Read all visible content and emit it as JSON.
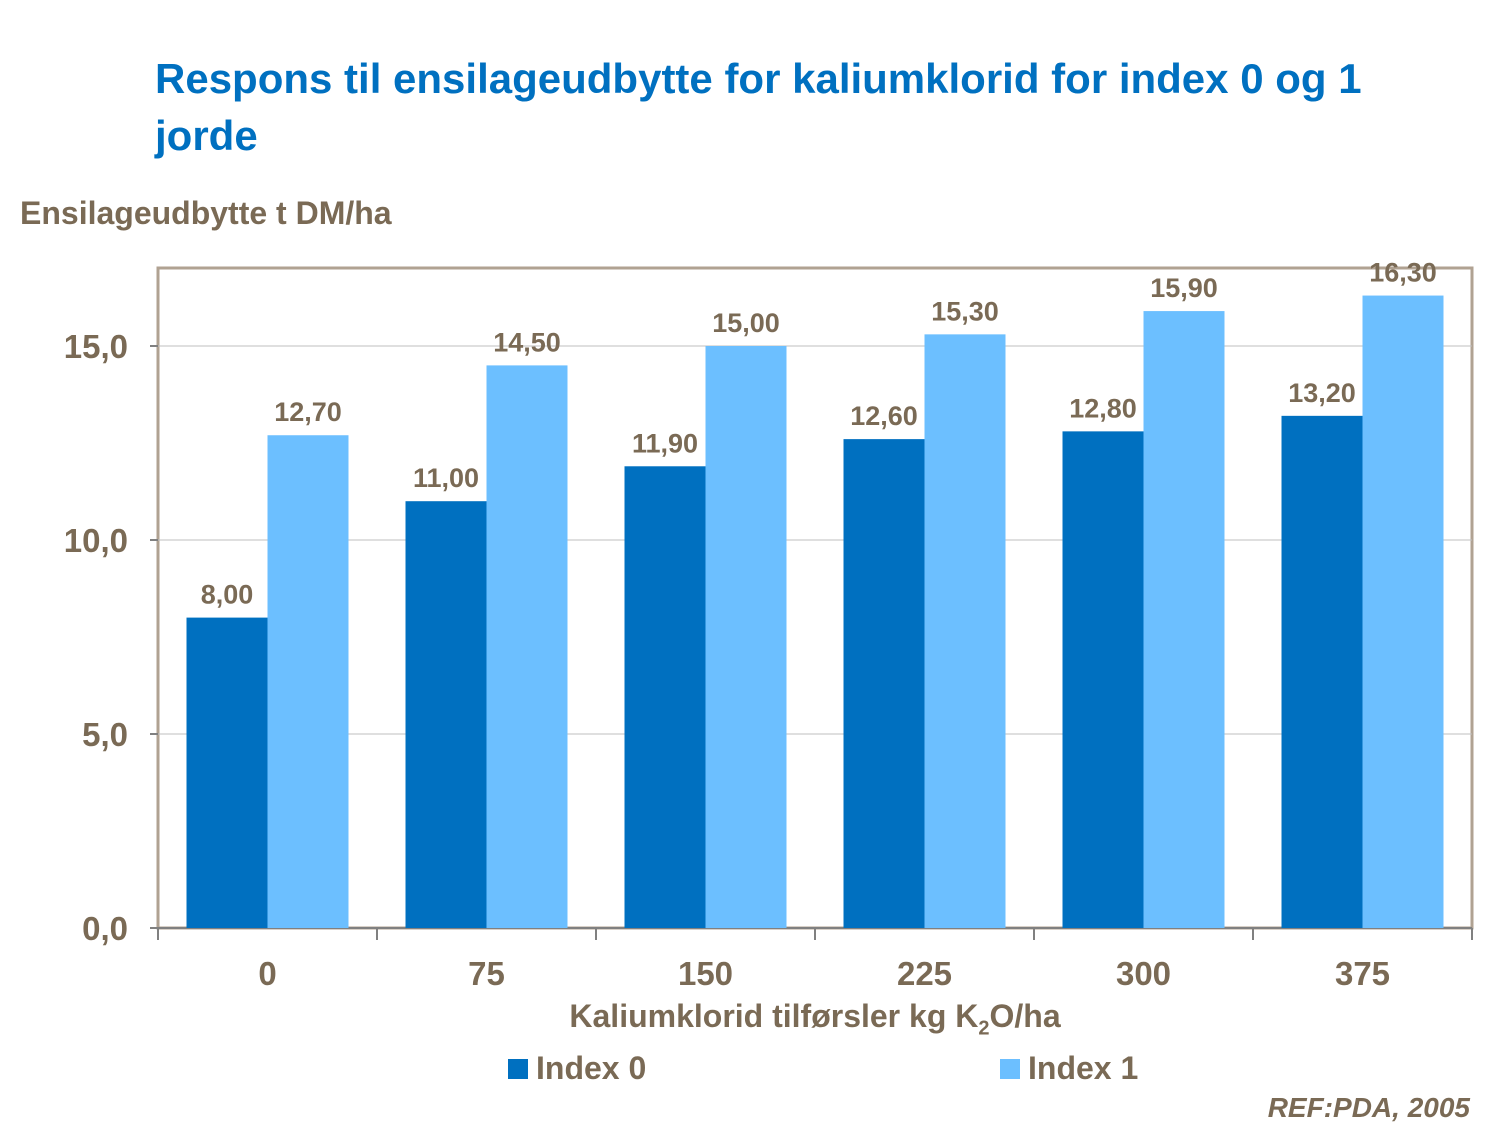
{
  "title": "Respons til ensilageudbytte for kaliumklorid for index 0 og 1 jorde",
  "reference": "REF:PDA, 2005",
  "colors": {
    "index0": "#0070C0",
    "index1": "#6CBFFF",
    "text": "#7A6A55",
    "title": "#0070C0",
    "frame": "#B0A292",
    "grid": "#BFBFBF"
  },
  "chart_data": {
    "type": "bar",
    "title": "Respons til ensilageudbytte for kaliumklorid for index 0 og 1 jorde",
    "ylabel": "Ensilageudbytte t DM/ha",
    "xlabel_prefix": "Kaliumklorid tilførsler kg K",
    "xlabel_sub": "2",
    "xlabel_suffix": "O/ha",
    "categories": [
      "0",
      "75",
      "150",
      "225",
      "300",
      "375"
    ],
    "series": [
      {
        "name": "Index 0",
        "values": [
          8.0,
          11.0,
          11.9,
          12.6,
          12.8,
          13.2
        ],
        "labels": [
          "8,00",
          "11,00",
          "11,90",
          "12,60",
          "12,80",
          "13,20"
        ]
      },
      {
        "name": "Index 1",
        "values": [
          12.7,
          14.5,
          15.0,
          15.3,
          15.9,
          16.3
        ],
        "labels": [
          "12,70",
          "14,50",
          "15,00",
          "15,30",
          "15,90",
          "16,30"
        ]
      }
    ],
    "ylim": [
      0,
      17
    ],
    "yticks": [
      0,
      5,
      10,
      15
    ],
    "ytick_labels": [
      "0,0",
      "5,0",
      "10,0",
      "15,0"
    ],
    "grid": true,
    "legend": "bottom"
  }
}
